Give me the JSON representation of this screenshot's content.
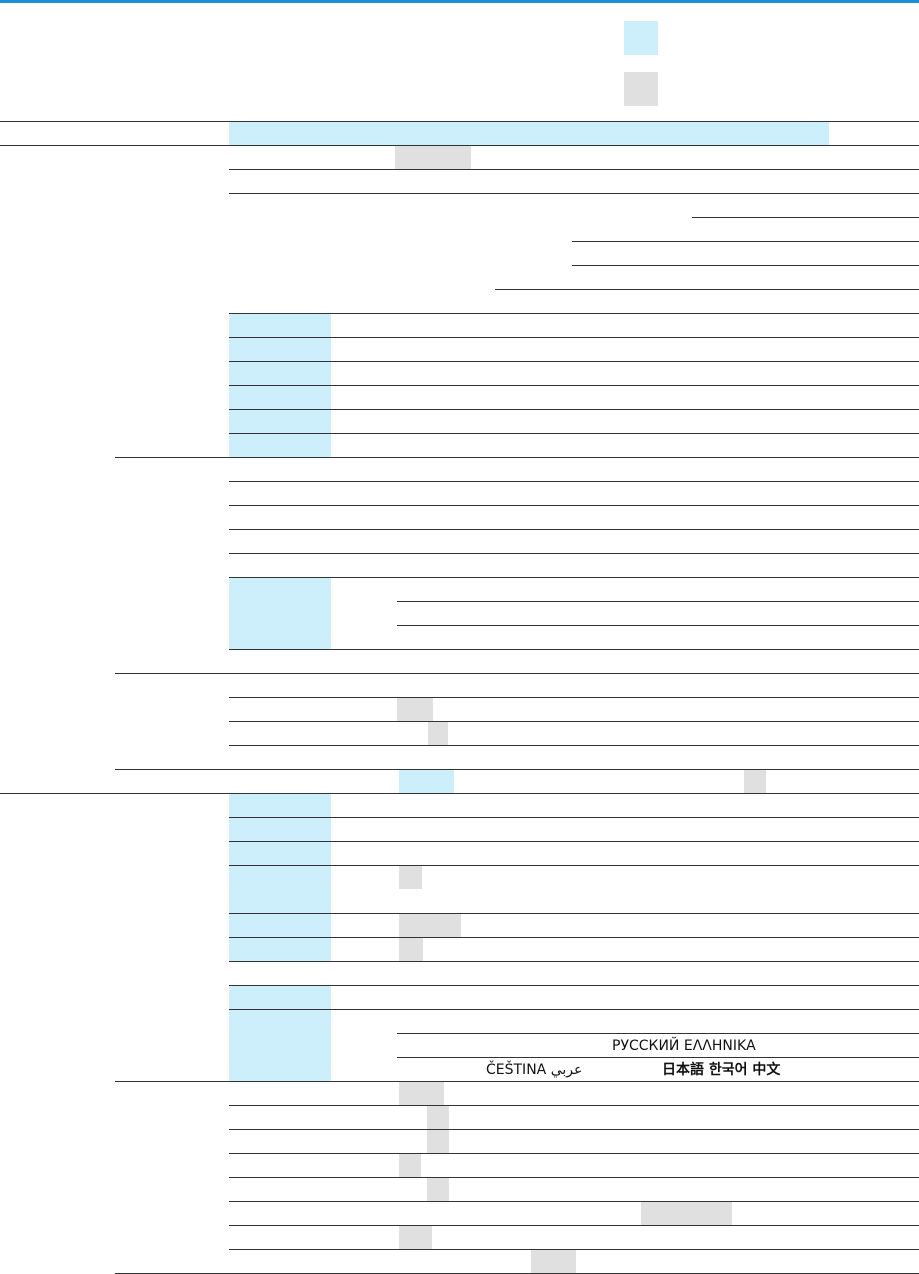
{
  "languages": {
    "line_1": "РУССКИЙ ΕΛΛΗΝΙΚΑ",
    "line_2_left": "ČEŠTINA عربي",
    "line_2_right": "日本語 한국어 中文"
  }
}
